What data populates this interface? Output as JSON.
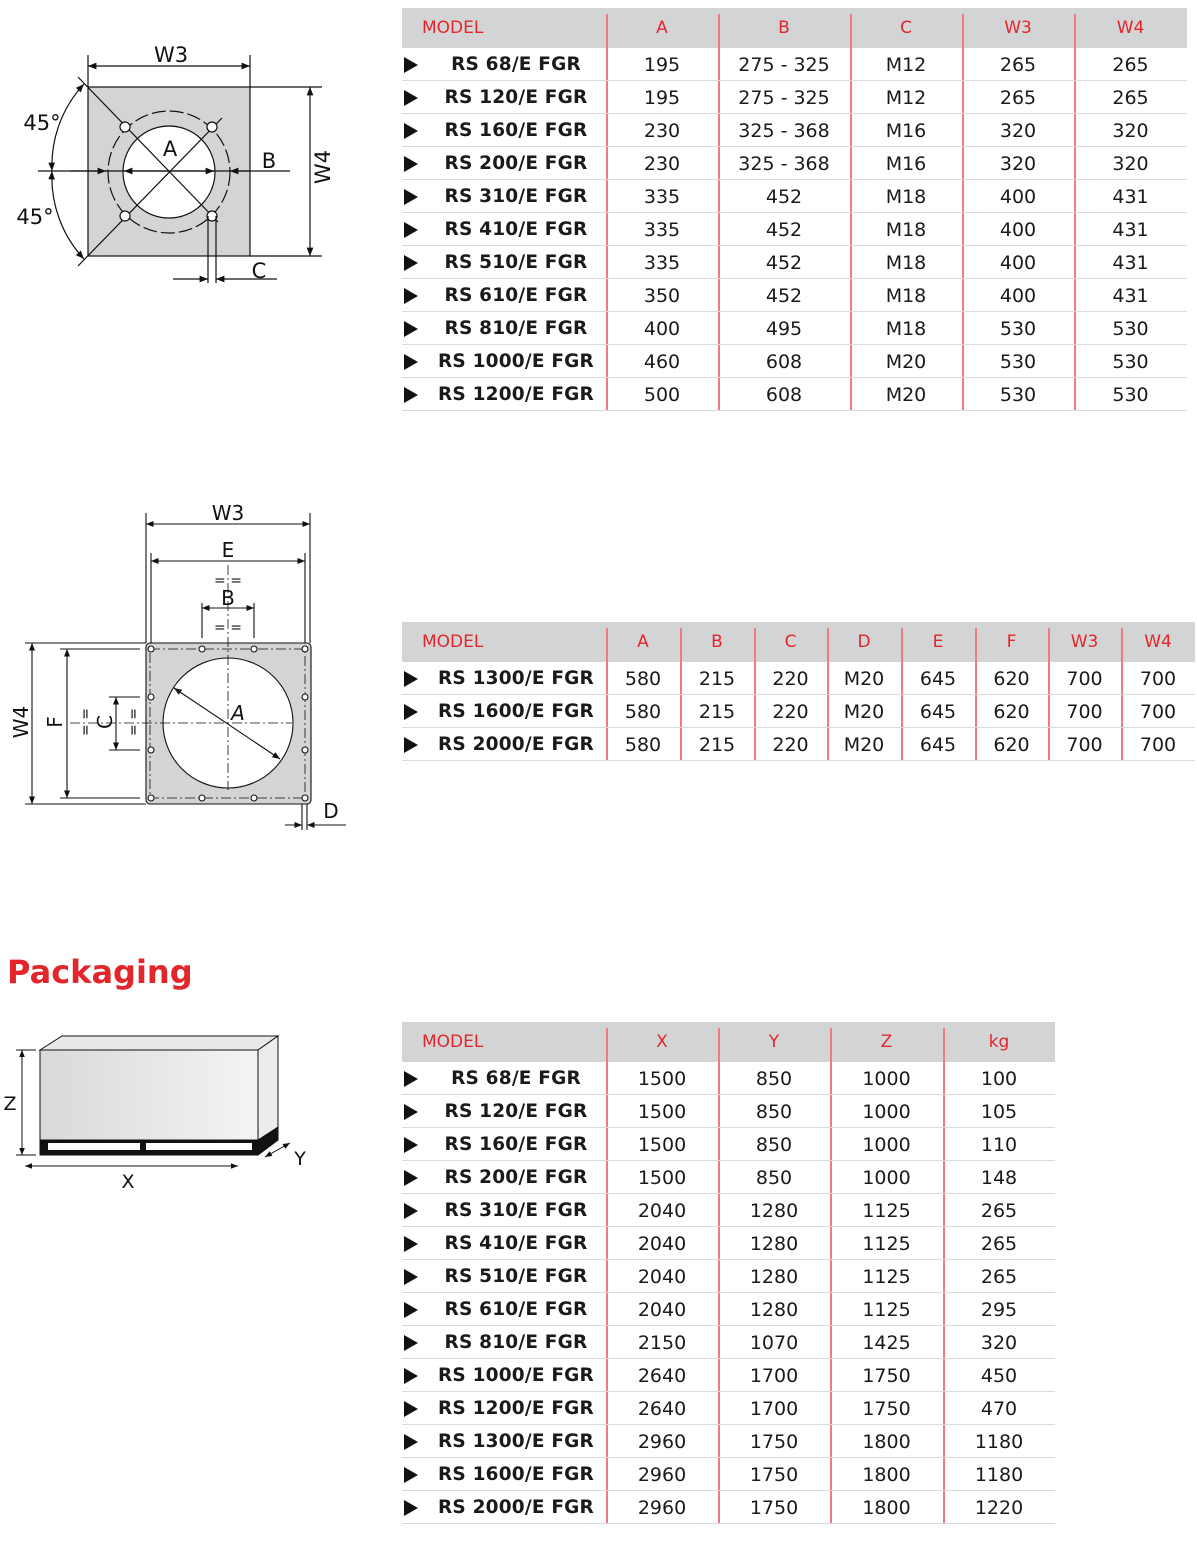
{
  "colors": {
    "accent": "#e3262b",
    "header_bg": "#d3d4d6",
    "plate_fill": "#d4d4d6"
  },
  "row_marker_icon": "play-triangle-icon",
  "diagram1": {
    "w3": "W3",
    "w4": "W4",
    "a": "A",
    "b": "B",
    "c": "C",
    "angle_top": "45°",
    "angle_bottom": "45°"
  },
  "diagram2": {
    "w3": "W3",
    "w4": "W4",
    "a": "A",
    "b": "B",
    "c": "C",
    "d": "D",
    "e": "E",
    "f": "F",
    "eq": "= ="
  },
  "packaging": {
    "title": "Packaging",
    "diagram": {
      "x": "X",
      "y": "Y",
      "z": "Z"
    }
  },
  "tables": [
    {
      "headers": [
        "MODEL",
        "A",
        "B",
        "C",
        "W3",
        "W4"
      ],
      "rows": [
        [
          "RS 68/E FGR",
          "195",
          "275 - 325",
          "M12",
          "265",
          "265"
        ],
        [
          "RS 120/E FGR",
          "195",
          "275 - 325",
          "M12",
          "265",
          "265"
        ],
        [
          "RS 160/E FGR",
          "230",
          "325 - 368",
          "M16",
          "320",
          "320"
        ],
        [
          "RS 200/E FGR",
          "230",
          "325 - 368",
          "M16",
          "320",
          "320"
        ],
        [
          "RS 310/E FGR",
          "335",
          "452",
          "M18",
          "400",
          "431"
        ],
        [
          "RS 410/E FGR",
          "335",
          "452",
          "M18",
          "400",
          "431"
        ],
        [
          "RS 510/E FGR",
          "335",
          "452",
          "M18",
          "400",
          "431"
        ],
        [
          "RS 610/E FGR",
          "350",
          "452",
          "M18",
          "400",
          "431"
        ],
        [
          "RS 810/E FGR",
          "400",
          "495",
          "M18",
          "530",
          "530"
        ],
        [
          "RS 1000/E FGR",
          "460",
          "608",
          "M20",
          "530",
          "530"
        ],
        [
          "RS 1200/E FGR",
          "500",
          "608",
          "M20",
          "530",
          "530"
        ]
      ]
    },
    {
      "headers": [
        "MODEL",
        "A",
        "B",
        "C",
        "D",
        "E",
        "F",
        "W3",
        "W4"
      ],
      "rows": [
        [
          "RS 1300/E FGR",
          "580",
          "215",
          "220",
          "M20",
          "645",
          "620",
          "700",
          "700"
        ],
        [
          "RS 1600/E FGR",
          "580",
          "215",
          "220",
          "M20",
          "645",
          "620",
          "700",
          "700"
        ],
        [
          "RS 2000/E FGR",
          "580",
          "215",
          "220",
          "M20",
          "645",
          "620",
          "700",
          "700"
        ]
      ]
    },
    {
      "headers": [
        "MODEL",
        "X",
        "Y",
        "Z",
        "kg"
      ],
      "rows": [
        [
          "RS 68/E FGR",
          "1500",
          "850",
          "1000",
          "100"
        ],
        [
          "RS 120/E FGR",
          "1500",
          "850",
          "1000",
          "105"
        ],
        [
          "RS 160/E FGR",
          "1500",
          "850",
          "1000",
          "110"
        ],
        [
          "RS 200/E FGR",
          "1500",
          "850",
          "1000",
          "148"
        ],
        [
          "RS 310/E FGR",
          "2040",
          "1280",
          "1125",
          "265"
        ],
        [
          "RS 410/E FGR",
          "2040",
          "1280",
          "1125",
          "265"
        ],
        [
          "RS 510/E FGR",
          "2040",
          "1280",
          "1125",
          "265"
        ],
        [
          "RS 610/E FGR",
          "2040",
          "1280",
          "1125",
          "295"
        ],
        [
          "RS 810/E FGR",
          "2150",
          "1070",
          "1425",
          "320"
        ],
        [
          "RS 1000/E FGR",
          "2640",
          "1700",
          "1750",
          "450"
        ],
        [
          "RS 1200/E FGR",
          "2640",
          "1700",
          "1750",
          "470"
        ],
        [
          "RS 1300/E FGR",
          "2960",
          "1750",
          "1800",
          "1180"
        ],
        [
          "RS 1600/E FGR",
          "2960",
          "1750",
          "1800",
          "1180"
        ],
        [
          "RS 2000/E FGR",
          "2960",
          "1750",
          "1800",
          "1220"
        ]
      ]
    }
  ]
}
